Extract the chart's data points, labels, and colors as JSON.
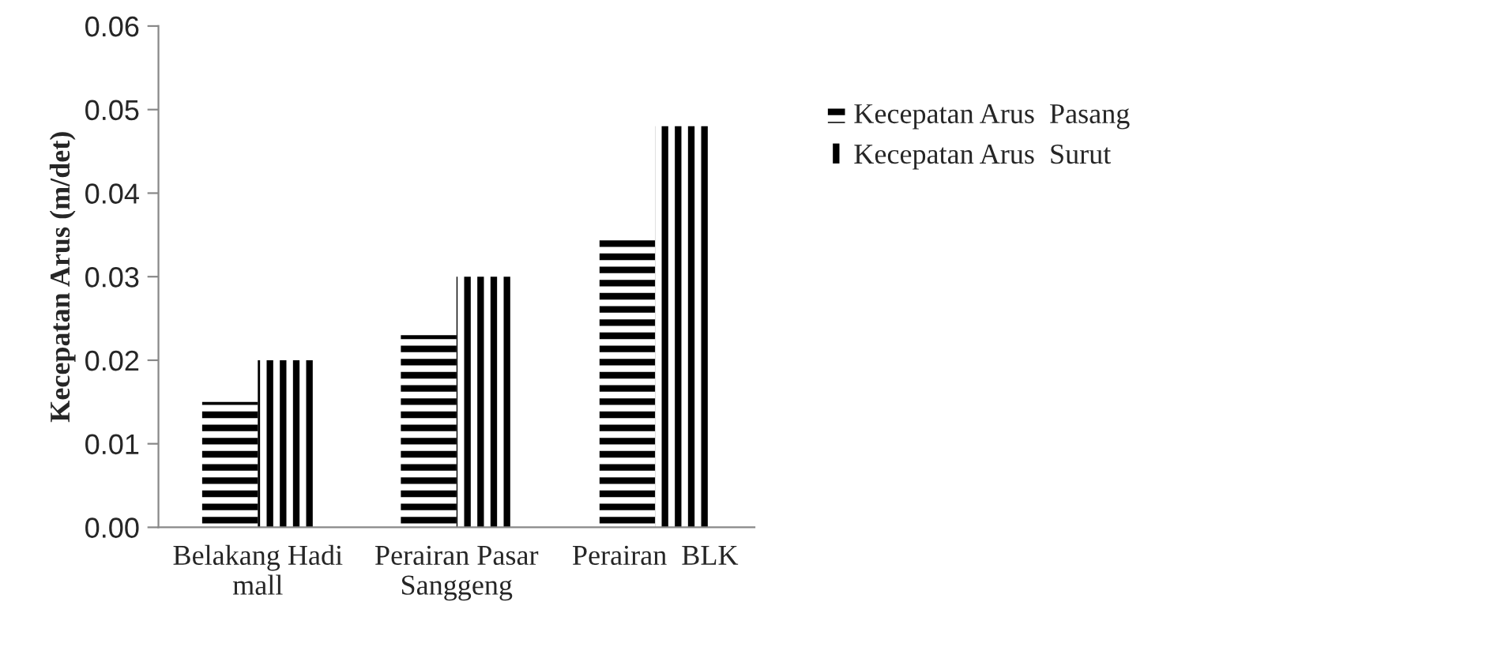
{
  "chart_data": {
    "type": "bar",
    "ylabel": "Kecepatan Arus (m/det)",
    "categories": [
      "Belakang Hadi\nmall",
      "Perairan Pasar\nSanggeng",
      "Perairan  BLK"
    ],
    "series": [
      {
        "name": "Kecepatan Arus  Pasang",
        "color": "#000000",
        "values": [
          0.015,
          0.023,
          0.035
        ]
      },
      {
        "name": "Kecepatan Arus  Surut",
        "color": "#000000",
        "values": [
          0.02,
          0.03,
          0.048
        ]
      }
    ],
    "ylim": [
      0,
      0.06
    ],
    "yticks": [
      {
        "value": 0,
        "label": "0.00"
      },
      {
        "value": 0.01,
        "label": "0.01"
      },
      {
        "value": 0.02,
        "label": "0.02"
      },
      {
        "value": 0.03,
        "label": "0.03"
      },
      {
        "value": 0.04,
        "label": "0.04"
      },
      {
        "value": 0.05,
        "label": "0.05"
      },
      {
        "value": 0.06,
        "label": "0.06"
      }
    ],
    "grid": false,
    "legend": "right"
  }
}
